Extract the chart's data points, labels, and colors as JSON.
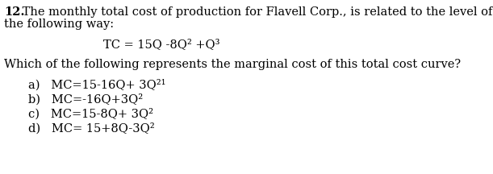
{
  "background_color": "#ffffff",
  "text_color": "#000000",
  "font_size": 10.5,
  "font_family": "serif",
  "num_bold": "12.",
  "line1_rest": " The monthly total cost of production for Flavell Corp., is related to the level of output Q in",
  "line2": "the following way:",
  "tc_equation": "TC = 15Q -8Q² +Q³",
  "question": "Which of the following represents the marginal cost of this total cost curve?",
  "option_a": "a)   MC=15-16Q+ 3Q²¹",
  "option_b": "b)   MC=-16Q+3Q²",
  "option_c": "c)   MC=15-8Q+ 3Q²",
  "option_d": "d)   MC= 15+8Q-3Q²"
}
